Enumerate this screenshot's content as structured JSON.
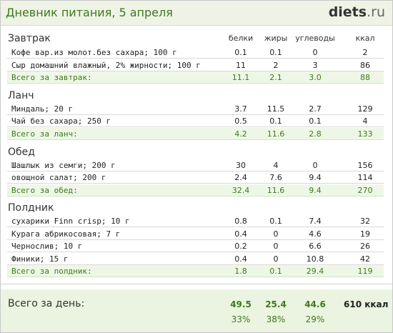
{
  "header": {
    "title": "Дневник питания, 5 апреля",
    "logo_bold": "diets",
    "logo_rest": ".ru"
  },
  "columns": [
    "белки",
    "жиры",
    "углеводы",
    "ккал"
  ],
  "sections": [
    {
      "title": "Завтрак",
      "rows": [
        {
          "name": "Кофе вар.из молот.без сахара; 100 г",
          "values": [
            "0.1",
            "0.1",
            "0",
            "2"
          ]
        },
        {
          "name": "Сыр домашний влажный, 2% жирности; 100 г",
          "values": [
            "11",
            "2",
            "3",
            "86"
          ]
        }
      ],
      "total": {
        "name": "Всего за завтрак:",
        "values": [
          "11.1",
          "2.1",
          "3.0",
          "88"
        ]
      }
    },
    {
      "title": "Ланч",
      "rows": [
        {
          "name": "Миндаль; 20 г",
          "values": [
            "3.7",
            "11.5",
            "2.7",
            "129"
          ]
        },
        {
          "name": "Чай без сахара; 250 г",
          "values": [
            "0.5",
            "0.1",
            "0.1",
            "4"
          ]
        }
      ],
      "total": {
        "name": "Всего за ланч:",
        "values": [
          "4.2",
          "11.6",
          "2.8",
          "133"
        ]
      }
    },
    {
      "title": "Обед",
      "rows": [
        {
          "name": "Шашлык из семги; 200 г",
          "values": [
            "30",
            "4",
            "0",
            "156"
          ]
        },
        {
          "name": "овощной салат; 200 г",
          "values": [
            "2.4",
            "7.6",
            "9.4",
            "114"
          ]
        }
      ],
      "total": {
        "name": "Всего за обед:",
        "values": [
          "32.4",
          "11.6",
          "9.4",
          "270"
        ]
      }
    },
    {
      "title": "Полдник",
      "rows": [
        {
          "name": "сухарики Finn crisp; 10 г",
          "values": [
            "0.8",
            "0.1",
            "7.4",
            "32"
          ]
        },
        {
          "name": "Курага абрикосовая; 7 г",
          "values": [
            "0.4",
            "0",
            "4.6",
            "19"
          ]
        },
        {
          "name": "Чернослив; 10 г",
          "values": [
            "0.2",
            "0",
            "6.6",
            "26"
          ]
        },
        {
          "name": "Финики; 15 г",
          "values": [
            "0.4",
            "0",
            "10.8",
            "42"
          ]
        }
      ],
      "total": {
        "name": "Всего за полдник:",
        "values": [
          "1.8",
          "0.1",
          "29.4",
          "119"
        ]
      }
    }
  ],
  "day_total": {
    "label": "Всего за день:",
    "values": [
      "49.5",
      "25.4",
      "44.6",
      "610 ккал"
    ],
    "percents": [
      "33%",
      "38%",
      "29%"
    ]
  }
}
